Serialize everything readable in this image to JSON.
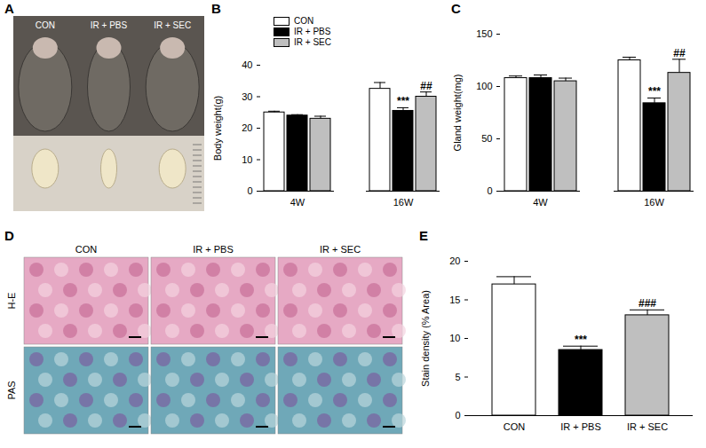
{
  "chart_data": [
    {
      "type": "bar",
      "title": "B",
      "ylabel": "Body weight(g)",
      "categories": [
        "4W",
        "16W"
      ],
      "series": [
        {
          "name": "CON",
          "color": "#ffffff",
          "values": [
            25,
            32.5
          ],
          "errors": [
            0.4,
            2
          ]
        },
        {
          "name": "IR + PBS",
          "color": "#000000",
          "values": [
            24,
            25.5
          ],
          "errors": [
            0.3,
            1
          ]
        },
        {
          "name": "IR + SEC",
          "color": "#bfbfbf",
          "values": [
            23,
            30
          ],
          "errors": [
            0.8,
            1.5
          ]
        }
      ],
      "ylim": [
        0,
        40
      ],
      "yticks": [
        0,
        10,
        20,
        30,
        40
      ],
      "legend": "top-left",
      "annotations": [
        {
          "category": "16W",
          "series": "IR + PBS",
          "text": "***"
        },
        {
          "category": "16W",
          "series": "IR + SEC",
          "text": "##"
        }
      ]
    },
    {
      "type": "bar",
      "title": "C",
      "ylabel": "Gland weight(mg)",
      "categories": [
        "4W",
        "16W"
      ],
      "series": [
        {
          "name": "CON",
          "color": "#ffffff",
          "values": [
            108,
            125
          ],
          "errors": [
            2,
            3
          ]
        },
        {
          "name": "IR + PBS",
          "color": "#000000",
          "values": [
            108,
            84
          ],
          "errors": [
            3,
            5
          ]
        },
        {
          "name": "IR + SEC",
          "color": "#bfbfbf",
          "values": [
            105,
            113
          ],
          "errors": [
            3,
            13
          ]
        }
      ],
      "ylim": [
        0,
        150
      ],
      "yticks": [
        0,
        50,
        100,
        150
      ],
      "annotations": [
        {
          "category": "16W",
          "series": "IR + PBS",
          "text": "***"
        },
        {
          "category": "16W",
          "series": "IR + SEC",
          "text": "##"
        }
      ]
    },
    {
      "type": "bar",
      "title": "E",
      "ylabel": "Stain density (% Area)",
      "categories": [
        "CON",
        "IR + PBS",
        "IR + SEC"
      ],
      "values": [
        17,
        8.5,
        13
      ],
      "errors": [
        1,
        0.5,
        0.7
      ],
      "colors": [
        "#ffffff",
        "#000000",
        "#bfbfbf"
      ],
      "ylim": [
        0,
        20
      ],
      "yticks": [
        0,
        5,
        10,
        15,
        20
      ],
      "annotations": [
        {
          "category": "IR + PBS",
          "text": "***"
        },
        {
          "category": "IR + SEC",
          "text": "###"
        }
      ]
    }
  ],
  "panels": {
    "A": {
      "label": "A",
      "groups": [
        "CON",
        "IR + PBS",
        "IR + SEC"
      ]
    },
    "D": {
      "label": "D",
      "columns": [
        "CON",
        "IR + PBS",
        "IR + SEC"
      ],
      "rows": [
        "H-E",
        "PAS"
      ]
    }
  }
}
